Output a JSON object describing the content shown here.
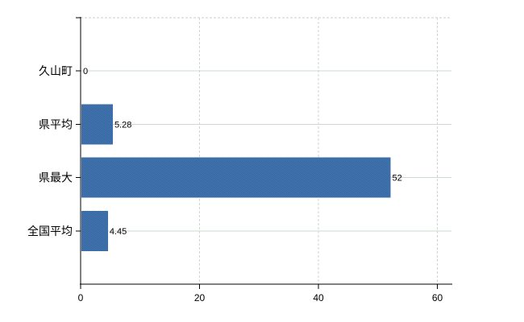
{
  "window": {
    "background": "#ffffff"
  },
  "chart_data": {
    "type": "bar",
    "orientation": "horizontal",
    "title": "",
    "xlabel": "",
    "ylabel": "",
    "categories": [
      "久山町",
      "県平均",
      "県最大",
      "全国平均"
    ],
    "values": [
      0,
      5.28,
      52,
      4.45
    ],
    "value_labels": [
      "0",
      "5.28",
      "52",
      "4.45"
    ],
    "x_ticks": [
      0,
      20,
      40,
      60
    ],
    "x_tick_labels": [
      "0",
      "20",
      "40",
      "60"
    ],
    "xlim": [
      0,
      62.5
    ],
    "grid": {
      "horizontal_solid_per_category": true,
      "vertical_dashed_at_ticks": true,
      "top_border_dashed": true
    },
    "legend": "none",
    "colors": {
      "bar_fill": "#4678b2",
      "bar_fill_alt": "#34649f",
      "h_gridline": "#ccd9cc",
      "v_gridline": "#d2d2d8",
      "top_border": "#cbcbd6",
      "axis": "#000000",
      "text": "#000000",
      "background": "#ffffff"
    }
  }
}
